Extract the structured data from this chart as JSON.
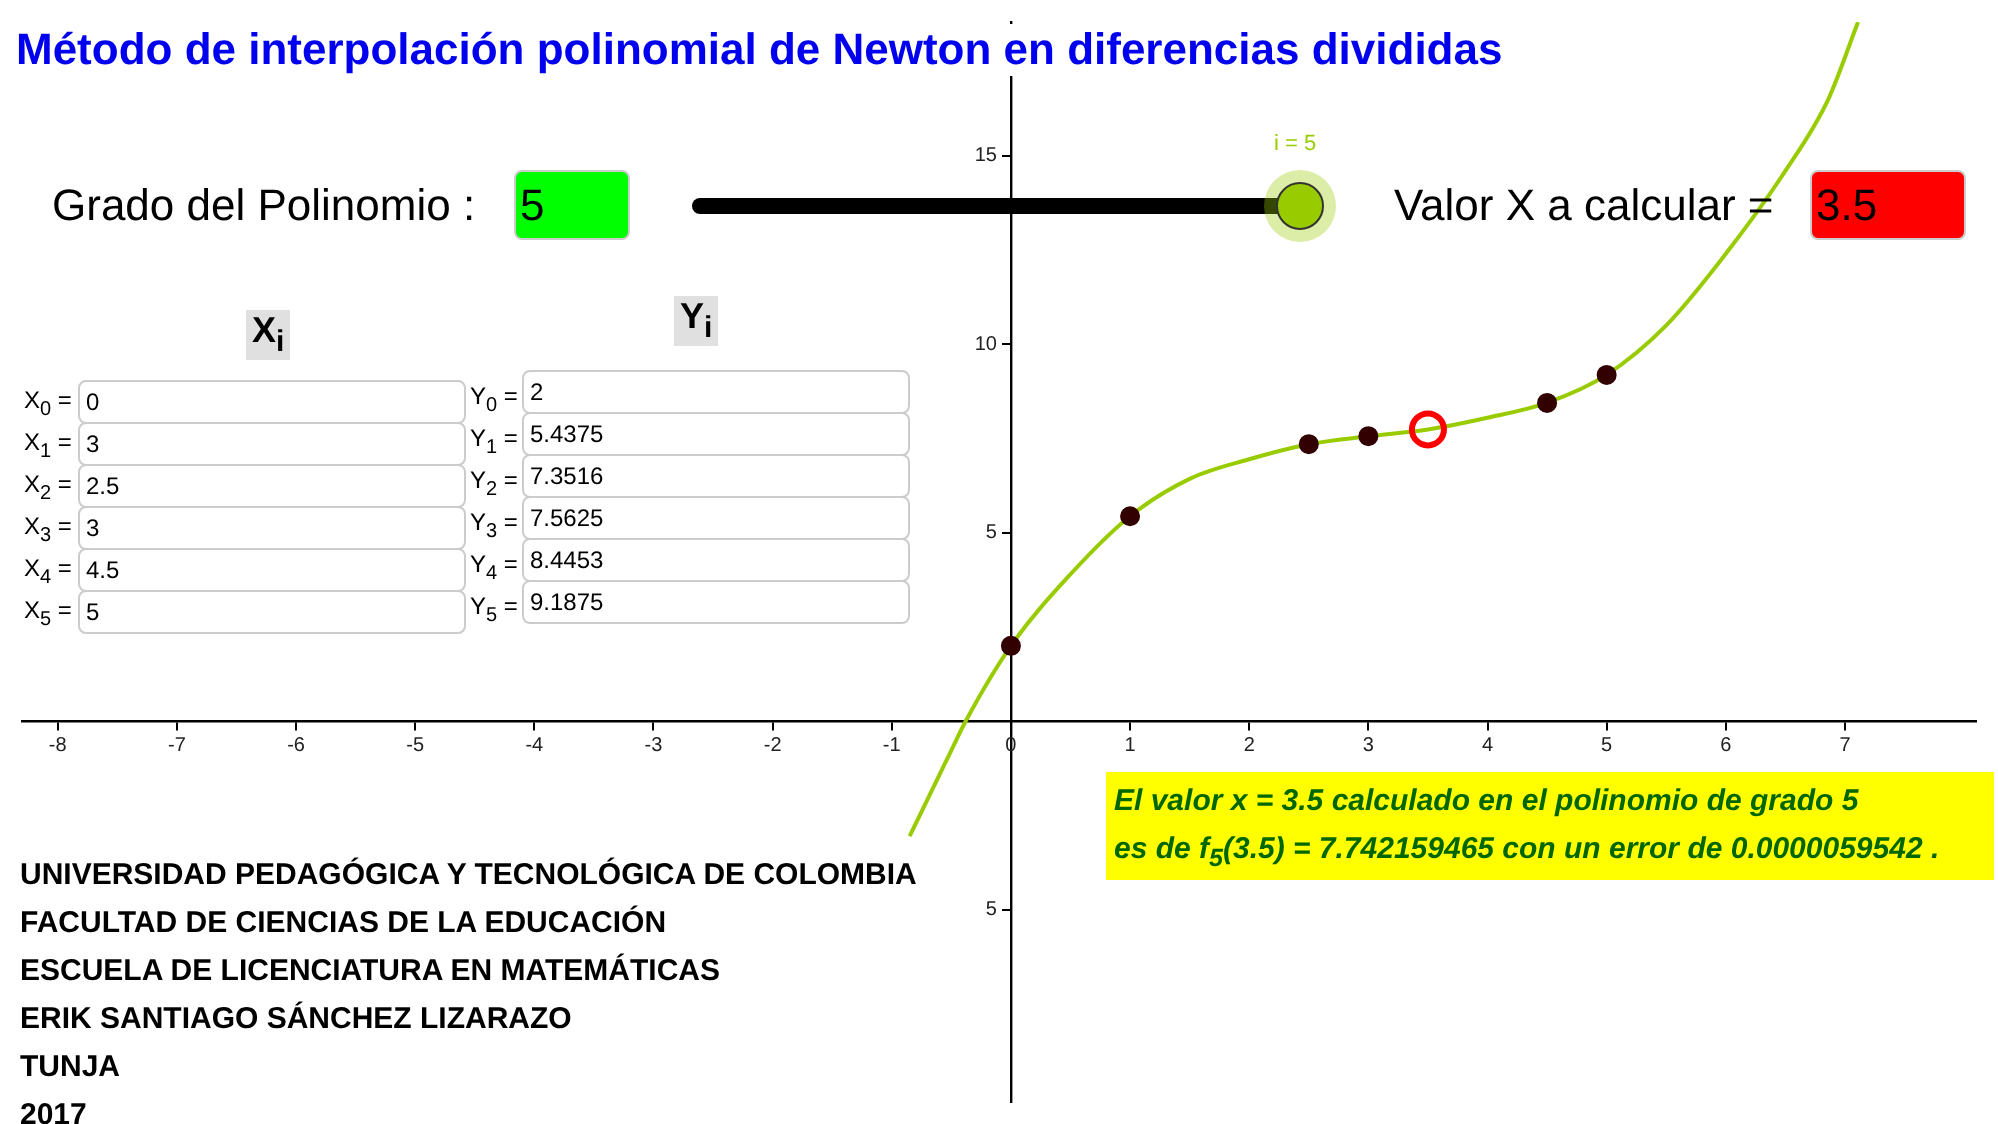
{
  "chart_data": {
    "type": "line",
    "title": "Método de interpolación polinomial de Newton en diferencias divididas",
    "xlim": [
      -8.3,
      8.1
    ],
    "ylim": [
      -10.1,
      18.55
    ],
    "xticks": [
      -8,
      -7,
      -6,
      -5,
      -4,
      -3,
      -2,
      -1,
      0,
      1,
      2,
      3,
      4,
      5,
      6,
      7
    ],
    "yticks": [
      {
        "value": -5,
        "label": "5"
      },
      5,
      10,
      15
    ],
    "legend": false,
    "series": [
      {
        "type": "line",
        "color": "#99cc00",
        "marker": "none",
        "x": [
          -0.85,
          -0.5,
          -0.38,
          0,
          0.5,
          1,
          1.5,
          2,
          2.5,
          3,
          3.5,
          4,
          4.5,
          5,
          5.5,
          6,
          6.5,
          6.86,
          7.11
        ],
        "values": [
          -3.05,
          -0.77,
          0,
          2,
          3.9,
          5.44,
          6.43,
          6.95,
          7.35,
          7.56,
          7.74,
          8.05,
          8.45,
          9.19,
          10.5,
          12.4,
          14.6,
          16.5,
          18.55
        ]
      },
      {
        "type": "scatter",
        "color": "#330000",
        "marker": "circle",
        "x": [
          0,
          1,
          2.5,
          3,
          4.5,
          5
        ],
        "values": [
          2,
          5.4375,
          7.3516,
          7.5625,
          8.4453,
          9.1875
        ]
      },
      {
        "type": "scatter",
        "color": "#ff0000",
        "marker": "circle",
        "x": [
          3.5
        ],
        "values": [
          7.742159465
        ]
      }
    ],
    "annotations": [
      "Grado del Polinomio :",
      "5",
      "i = 5",
      "Valor X a calcular =",
      "3.5",
      "X$_{i}$",
      "Y$_{i}$",
      "X$_{0}$ =",
      "0",
      "Y$_{0}$ =",
      "2",
      "X$_{1}$ =",
      "3",
      "Y$_{1}$ =",
      "5.4375",
      "X$_{2}$ =",
      "2.5",
      "Y$_{2}$ =",
      "7.3516",
      "X$_{3}$ =",
      "3",
      "Y$_{3}$ =",
      "7.5625",
      "X$_{4}$ =",
      "4.5",
      "Y$_{4}$ =",
      "8.4453",
      "X$_{5}$ =",
      "5",
      "Y$_{5}$ =",
      "9.1875",
      "El valor x = 3.5 calculado en el polinomio de grado 5",
      "es de f$_{5}$(3.5) = 7.742159465 con un error de 0.0000059542 .",
      "UNIVERSIDAD PEDAGÓGICA Y TECNOLÓGICA DE COLOMBIA",
      "FACULTAD DE CIENCIAS DE LA EDUCACIÓN",
      "ESCUELA DE LICENCIATURA EN MATEMÁTICAS",
      "ERIK SANTIAGO SÁNCHEZ LIZARAZO",
      "TUNJA",
      "2017"
    ]
  }
}
